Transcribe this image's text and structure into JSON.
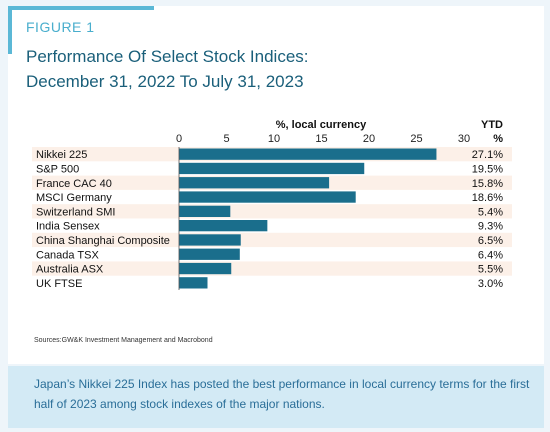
{
  "figure": {
    "label": "FIGURE 1",
    "title_line1": "Performance Of Select Stock Indices:",
    "title_line2": "December 31, 2022 To July 31, 2023",
    "source": "Sources:GW&K Investment Management and Macrobond",
    "caption": "Japan’s Nikkei 225 Index has posted the best performance in local currency terms for the first half of 2023 among stock indexes of the major nations."
  },
  "colors": {
    "bar": "#1a6e8c",
    "band": "#fcf0e8",
    "accent": "#5bb8d6",
    "title": "#1a5f7a",
    "caption_bg": "#d3eaf5"
  },
  "chart_data": {
    "type": "bar",
    "orientation": "horizontal",
    "xlabel": "%, local currency",
    "value_header_line1": "YTD",
    "value_header_line2": "%",
    "xlim": [
      0,
      30
    ],
    "xticks": [
      0,
      5,
      10,
      15,
      20,
      25,
      30
    ],
    "categories": [
      "Nikkei 225",
      "S&P 500",
      "France CAC 40",
      "MSCI Germany",
      "Switzerland SMI",
      "India Sensex",
      "China Shanghai Composite",
      "Canada TSX",
      "Australia ASX",
      "UK FTSE"
    ],
    "values": [
      27.1,
      19.5,
      15.8,
      18.6,
      5.4,
      9.3,
      6.5,
      6.4,
      5.5,
      3.0
    ],
    "value_labels": [
      "27.1%",
      "19.5%",
      "15.8%",
      "18.6%",
      "5.4%",
      "9.3%",
      "6.5%",
      "6.4%",
      "5.5%",
      "3.0%"
    ],
    "grid": false
  }
}
